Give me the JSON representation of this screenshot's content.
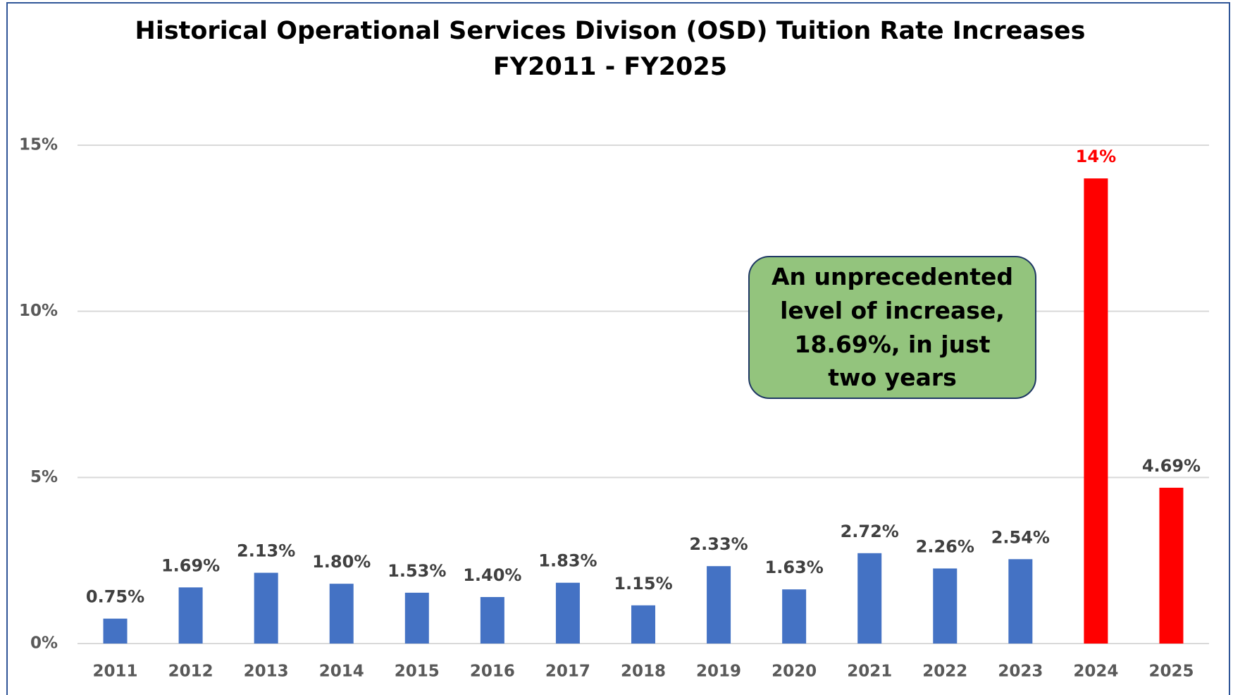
{
  "chart_data": {
    "type": "bar",
    "title": "Historical Operational Services Divison (OSD) Tuition Rate Increases",
    "subtitle": "FY2011 - FY2025",
    "categories": [
      "2011",
      "2012",
      "2013",
      "2014",
      "2015",
      "2016",
      "2017",
      "2018",
      "2019",
      "2020",
      "2021",
      "2022",
      "2023",
      "2024",
      "2025"
    ],
    "values": [
      0.75,
      1.69,
      2.13,
      1.8,
      1.53,
      1.4,
      1.83,
      1.15,
      2.33,
      1.63,
      2.72,
      2.26,
      2.54,
      14,
      4.69
    ],
    "value_labels": [
      "0.75%",
      "1.69%",
      "2.13%",
      "1.80%",
      "1.53%",
      "1.40%",
      "1.83%",
      "1.15%",
      "2.33%",
      "1.63%",
      "2.72%",
      "2.26%",
      "2.54%",
      "14%",
      "4.69%"
    ],
    "colors": [
      "#4472c4",
      "#4472c4",
      "#4472c4",
      "#4472c4",
      "#4472c4",
      "#4472c4",
      "#4472c4",
      "#4472c4",
      "#4472c4",
      "#4472c4",
      "#4472c4",
      "#4472c4",
      "#4472c4",
      "#ff0000",
      "#ff0000"
    ],
    "label_colors": [
      "#404040",
      "#404040",
      "#404040",
      "#404040",
      "#404040",
      "#404040",
      "#404040",
      "#404040",
      "#404040",
      "#404040",
      "#404040",
      "#404040",
      "#404040",
      "#ff0000",
      "#404040"
    ],
    "ylim": [
      0,
      15
    ],
    "yticks": [
      {
        "value": 0,
        "label": "0%"
      },
      {
        "value": 5,
        "label": "5%"
      },
      {
        "value": 10,
        "label": "10%"
      },
      {
        "value": 15,
        "label": "15%"
      }
    ],
    "grid": true,
    "annotation": "An unprecedented level of increase, 18.69%, in just two years"
  }
}
